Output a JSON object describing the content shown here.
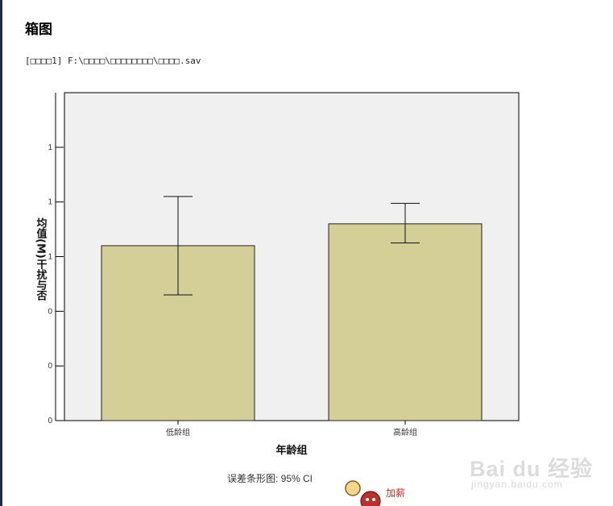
{
  "page": {
    "title": "箱图",
    "dataset_line": "[□□□□1] F:\\□□□□\\□□□□□□□□\\□□□□.sav",
    "footnote": "误差条形图: 95% CI",
    "watermark": "Bai du 经验",
    "watermark_url": "jingyan.baidu.com",
    "mascot_label": "加薪"
  },
  "colors": {
    "plot_bg": "#f0f0f0",
    "bar_fill": "#d3cf97",
    "bar_stroke": "#222222",
    "axis": "#000000"
  },
  "chart_data": {
    "type": "bar",
    "categories": [
      "低龄组",
      "高龄组"
    ],
    "values": [
      0.64,
      0.72
    ],
    "error_low": [
      0.46,
      0.65
    ],
    "error_high": [
      0.82,
      0.795
    ],
    "ylabel": "均值(M) 干扰与否",
    "xlabel": "年龄组",
    "ylim": [
      0,
      1.2
    ],
    "y_ticks": [
      0,
      0.2,
      0.4,
      0.6,
      0.8,
      1.0
    ],
    "y_tick_labels": [
      "0",
      "0",
      "0",
      "1",
      "1",
      "1"
    ],
    "error_bar": "95% CI",
    "grid": false
  }
}
